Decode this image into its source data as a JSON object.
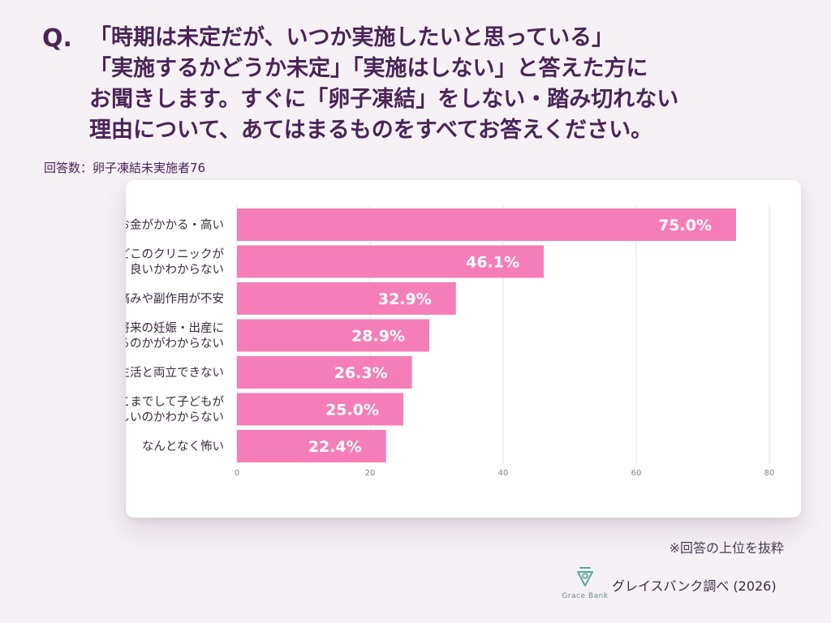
{
  "question": {
    "prefix": "Q.",
    "lines": [
      "「時期は未定だが、いつか実施したいと思っている」",
      "「実施するかどうか未定」「実施はしない」と答えた方に",
      "お聞きします。すぐに「卵子凍結」をしない・踏み切れない",
      "理由について、あてはまるものをすべてお答えください。"
    ]
  },
  "respondents": "回答数：卵子凍結未実施者76",
  "note": "※回答の上位を抜粋",
  "footer": {
    "logo_text": "Grace Bank",
    "source": "グレイスバンク調べ (2026)"
  },
  "colors": {
    "bar": "#f57eb8",
    "title": "#4a2457",
    "grid": "#e4e0e6",
    "logo": "#5aa89c"
  },
  "chart_data": {
    "type": "bar",
    "orientation": "horizontal",
    "categories": [
      [
        "お金がかかる・高い"
      ],
      [
        "どこのクリニックが",
        "良いかわからない"
      ],
      [
        "痛みや副作用が不安"
      ],
      [
        "将来の妊娠・出産に",
        "つながるのかがわからない"
      ],
      [
        "仕事や私生活と両立できない"
      ],
      [
        "そこまでして子どもが",
        "欲しいのかわからない"
      ],
      [
        "なんとなく怖い"
      ]
    ],
    "values": [
      75.0,
      46.1,
      32.9,
      28.9,
      26.3,
      25.0,
      22.4
    ],
    "value_labels": [
      "75.0%",
      "46.1%",
      "32.9%",
      "28.9%",
      "26.3%",
      "25.0%",
      "22.4%"
    ],
    "xlim": [
      0,
      80
    ],
    "ticks": [
      "0",
      "20",
      "40",
      "60",
      "80"
    ],
    "grid": true
  }
}
